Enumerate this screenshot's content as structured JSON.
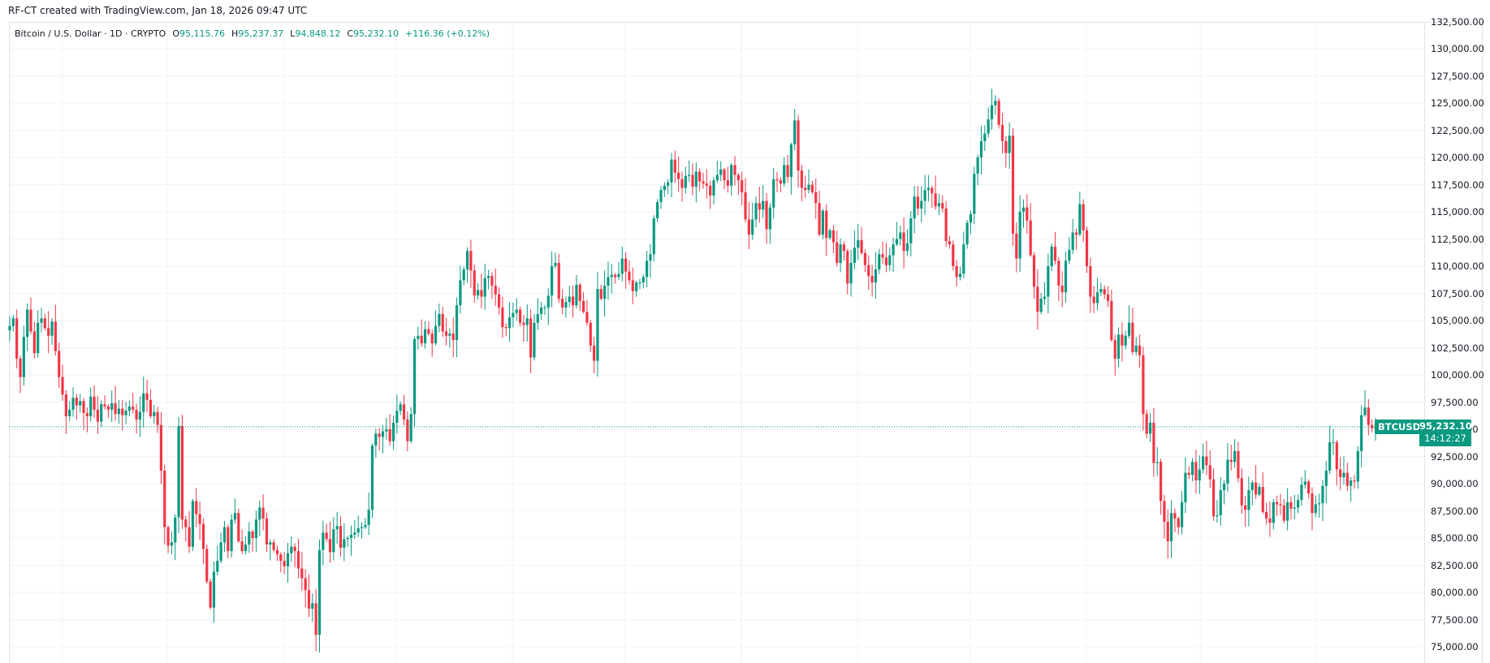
{
  "header": {
    "credit": "RF-CT created with TradingView.com, Jan 18, 2026 09:47 UTC"
  },
  "legend": {
    "symbol_desc": "Bitcoin / U.S. Dollar · 1D · CRYPTO",
    "o_label": "O",
    "o_value": "95,115.76",
    "h_label": "H",
    "h_value": "95,237.37",
    "l_label": "L",
    "l_value": "94,848.12",
    "c_label": "C",
    "c_value": "95,232.10",
    "change": "+116.36 (+0.12%)"
  },
  "price_badge": {
    "symbol": "BTCUSD",
    "price": "95,232.10",
    "countdown": "14:12:27"
  },
  "colors": {
    "up": "#089981",
    "down": "#F23645",
    "grid": "#f0f3fa",
    "price_line": "#089981"
  },
  "chart_data": {
    "type": "candlestick",
    "title": "Bitcoin / U.S. Dollar · 1D · CRYPTO",
    "xlabel": "",
    "ylabel": "USD",
    "ylim": [
      73800,
      132800
    ],
    "y_ticks": [
      "132,500.00",
      "130,000.00",
      "127,500.00",
      "125,000.00",
      "122,500.00",
      "120,000.00",
      "117,500.00",
      "115,000.00",
      "112,500.00",
      "110,000.00",
      "107,500.00",
      "105,000.00",
      "102,500.00",
      "100,000.00",
      "97,500.00",
      "95,000.00",
      "92,500.00",
      "90,000.00",
      "87,500.00",
      "85,000.00",
      "82,500.00",
      "80,000.00",
      "77,500.00",
      "75,000.00"
    ],
    "y_tick_values": [
      132500,
      130000,
      127500,
      125000,
      122500,
      120000,
      117500,
      115000,
      112500,
      110000,
      107500,
      105000,
      102500,
      100000,
      97500,
      95000,
      92500,
      90000,
      87500,
      85000,
      82500,
      80000,
      77500,
      75000
    ],
    "grid": true,
    "last_price": 95232.1,
    "closes": [
      104500,
      105200,
      101500,
      99800,
      103500,
      106000,
      104000,
      102000,
      104800,
      105200,
      104300,
      103600,
      104900,
      102200,
      99800,
      98200,
      96200,
      96800,
      97900,
      97200,
      97600,
      96500,
      96200,
      98000,
      96800,
      95700,
      97300,
      97100,
      96800,
      97400,
      96400,
      96900,
      96300,
      96700,
      97100,
      96800,
      95900,
      96600,
      98300,
      97700,
      96200,
      96600,
      95400,
      91200,
      86000,
      84300,
      84600,
      86900,
      95300,
      86700,
      86000,
      84200,
      88400,
      87200,
      86300,
      84000,
      81000,
      78600,
      81900,
      82900,
      84600,
      86000,
      83800,
      86700,
      87300,
      84700,
      83800,
      84400,
      85600,
      85000,
      86700,
      87800,
      86800,
      84400,
      84600,
      83900,
      83500,
      82900,
      82400,
      83600,
      84200,
      83800,
      82200,
      81300,
      80200,
      78500,
      79000,
      76100,
      83900,
      85500,
      84900,
      83700,
      85800,
      86100,
      84100,
      84900,
      85000,
      85300,
      85500,
      85900,
      86000,
      86200,
      87600,
      93500,
      94600,
      94300,
      94800,
      95000,
      93900,
      95600,
      96700,
      97300,
      95900,
      93900,
      96400,
      103300,
      103600,
      102900,
      104200,
      103800,
      102900,
      104500,
      105600,
      104000,
      103600,
      103800,
      103200,
      106400,
      108700,
      109700,
      111400,
      109600,
      107300,
      107800,
      107200,
      108900,
      109100,
      108200,
      107400,
      106200,
      104400,
      104300,
      105300,
      105700,
      106000,
      104800,
      104600,
      105200,
      101600,
      104800,
      105600,
      106200,
      106200,
      107300,
      110000,
      110300,
      107000,
      106200,
      106700,
      107200,
      106400,
      108300,
      106800,
      105800,
      104800,
      102700,
      101300,
      107900,
      107000,
      108200,
      109000,
      109200,
      109000,
      109300,
      110700,
      109500,
      108700,
      107700,
      108500,
      108500,
      109000,
      110500,
      111100,
      114400,
      115900,
      117000,
      117400,
      117700,
      119800,
      118600,
      118000,
      117200,
      118300,
      118400,
      117300,
      118700,
      117800,
      117600,
      117400,
      116500,
      117900,
      118400,
      118900,
      117900,
      117400,
      119300,
      118400,
      117900,
      116800,
      114300,
      112900,
      114300,
      115800,
      115200,
      116000,
      113400,
      115400,
      118000,
      117900,
      117600,
      119300,
      118200,
      121200,
      123400,
      118800,
      117200,
      117000,
      117500,
      116800,
      115800,
      112900,
      115100,
      112600,
      113300,
      112200,
      110300,
      112000,
      111400,
      108400,
      110300,
      111700,
      112400,
      111200,
      110100,
      109100,
      108500,
      109700,
      111100,
      110800,
      110100,
      111000,
      112000,
      112500,
      113100,
      111400,
      112100,
      114400,
      116400,
      115300,
      116000,
      117000,
      117200,
      116700,
      115500,
      115800,
      115300,
      112300,
      112000,
      110000,
      109000,
      109300,
      112000,
      114000,
      114800,
      118500,
      120000,
      121500,
      122200,
      123500,
      124800,
      125200,
      123000,
      121500,
      120400,
      122000,
      113000,
      110700,
      115000,
      115400,
      114200,
      111000,
      108100,
      105800,
      107000,
      107200,
      110000,
      111800,
      110500,
      108200,
      107600,
      110500,
      111500,
      113100,
      112900,
      115700,
      113300,
      110000,
      107200,
      106600,
      107600,
      107900,
      107400,
      106800,
      103200,
      101500,
      103700,
      102700,
      103600,
      104800,
      102100,
      102700,
      101800,
      96400,
      94600,
      95600,
      91900,
      92000,
      88400,
      86500,
      84700,
      87300,
      86800,
      86000,
      88300,
      91000,
      90800,
      92000,
      90300,
      91300,
      92500,
      91700,
      90400,
      87000,
      87100,
      89400,
      90000,
      92200,
      92000,
      93000,
      90500,
      88000,
      87600,
      89400,
      90100,
      89000,
      89700,
      87400,
      86800,
      86400,
      88300,
      88100,
      88000,
      86600,
      88300,
      87700,
      87800,
      88500,
      89900,
      90200,
      89100,
      87300,
      88100,
      88200,
      89800,
      91200,
      93800,
      93800,
      91300,
      90600,
      91000,
      89800,
      90300,
      90200,
      93000,
      96300,
      97000,
      95400,
      95100,
      95200
    ]
  }
}
